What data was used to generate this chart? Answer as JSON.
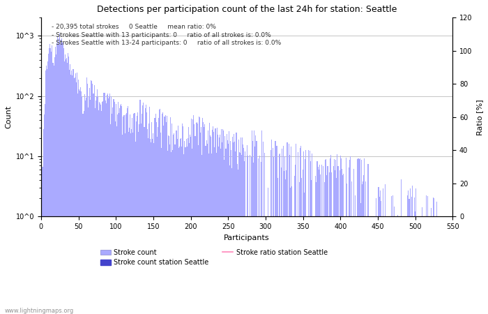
{
  "title": "Detections per participation count of the last 24h for station: Seattle",
  "xlabel": "Participants",
  "ylabel_left": "Count",
  "ylabel_right": "Ratio [%]",
  "annotation_lines": [
    "- 20,395 total strokes     0 Seattle     mean ratio: 0%",
    "- Strokes Seattle with 13 participants: 0     ratio of all strokes is: 0.0%",
    "- Strokes Seattle with 13-24 participants: 0     ratio of all strokes is: 0.0%"
  ],
  "bar_color_light": "#aaaaff",
  "bar_color_dark": "#4444cc",
  "ratio_line_color": "#ff88bb",
  "watermark": "www.lightningmaps.org",
  "xlim": [
    0,
    550
  ],
  "ylim_log_min": 1,
  "ylim_log_max": 2000,
  "ylim_right": [
    0,
    120
  ],
  "right_ticks": [
    0,
    20,
    40,
    60,
    80,
    100,
    120
  ],
  "xticks": [
    0,
    50,
    100,
    150,
    200,
    250,
    300,
    350,
    400,
    450,
    500,
    550
  ],
  "ytick_vals": [
    1,
    10,
    100,
    1000
  ],
  "ytick_labels": [
    "10^0",
    "10^1",
    "10^2",
    "10^3"
  ],
  "legend_labels": [
    "Stroke count",
    "Stroke count station Seattle",
    "Stroke ratio station Seattle"
  ],
  "title_fontsize": 9,
  "label_fontsize": 8,
  "tick_fontsize": 7,
  "annotation_fontsize": 6.5,
  "watermark_fontsize": 6
}
